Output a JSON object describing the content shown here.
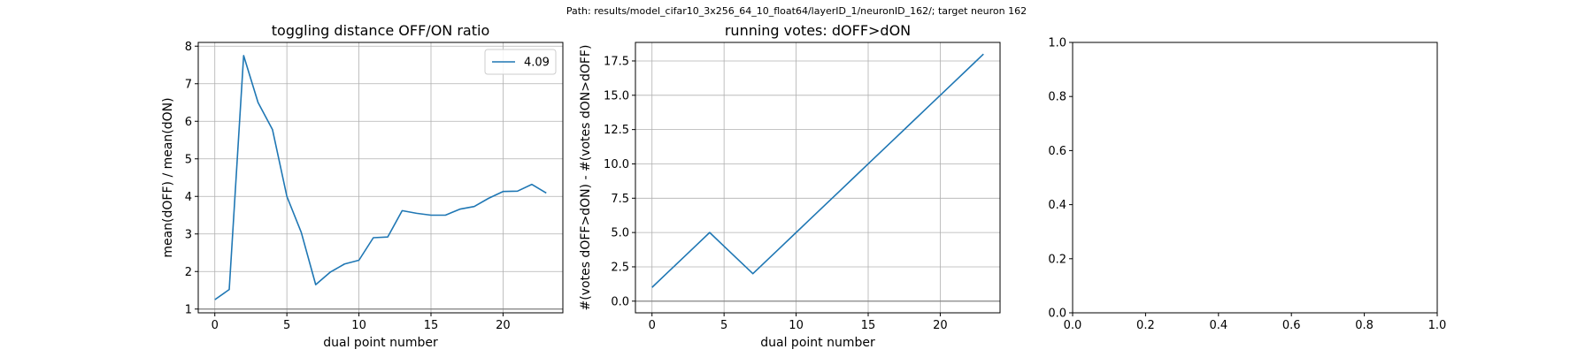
{
  "suptitle": "Path: results/model_cifar10_3x256_64_10_float64/layerID_1/neuronID_162/; target neuron 162",
  "colors": {
    "series": "#1f77b4",
    "grid": "#b0b0b0",
    "zero_line": "#808080"
  },
  "chart_data": [
    {
      "type": "line",
      "title": "toggling distance OFF/ON ratio",
      "xlabel": "dual point number",
      "ylabel": "mean(dOFF) / mean(dON)",
      "xlim": [
        -1.15,
        24.15
      ],
      "ylim": [
        0.9,
        8.1
      ],
      "xticks": [
        0,
        5,
        10,
        15,
        20
      ],
      "yticks": [
        1,
        2,
        3,
        4,
        5,
        6,
        7,
        8
      ],
      "grid": true,
      "hline": 1,
      "legend": {
        "placement": "top-right",
        "entries": [
          "4.09"
        ]
      },
      "series": [
        {
          "name": "4.09",
          "x": [
            0,
            1,
            2,
            3,
            4,
            5,
            6,
            7,
            8,
            9,
            10,
            11,
            12,
            13,
            14,
            15,
            16,
            17,
            18,
            19,
            20,
            21,
            22,
            23
          ],
          "y": [
            1.25,
            1.52,
            7.75,
            6.5,
            5.78,
            4.0,
            3.04,
            1.65,
            1.98,
            2.2,
            2.3,
            2.9,
            2.92,
            3.62,
            3.55,
            3.5,
            3.5,
            3.66,
            3.73,
            3.95,
            4.13,
            4.14,
            4.32,
            4.09
          ]
        }
      ]
    },
    {
      "type": "line",
      "title": "running votes: dOFF>dON",
      "xlabel": "dual point number",
      "ylabel": "#(votes dOFF>dON) - #(votes dON>dOFF)",
      "xlim": [
        -1.15,
        24.15
      ],
      "ylim": [
        -0.85,
        18.85
      ],
      "xticks": [
        0,
        5,
        10,
        15,
        20
      ],
      "yticks": [
        0.0,
        2.5,
        5.0,
        7.5,
        10.0,
        12.5,
        15.0,
        17.5
      ],
      "ytick_labels": [
        "0.0",
        "2.5",
        "5.0",
        "7.5",
        "10.0",
        "12.5",
        "15.0",
        "17.5"
      ],
      "grid": true,
      "hline": 0,
      "series": [
        {
          "x": [
            0,
            1,
            2,
            3,
            4,
            5,
            6,
            7,
            8,
            9,
            10,
            11,
            12,
            13,
            14,
            15,
            16,
            17,
            18,
            19,
            20,
            21,
            22,
            23
          ],
          "y": [
            1,
            2,
            3,
            4,
            5,
            4,
            3,
            2,
            3,
            4,
            5,
            6,
            7,
            8,
            9,
            10,
            11,
            12,
            13,
            14,
            15,
            16,
            17,
            18
          ]
        }
      ]
    },
    {
      "type": "line",
      "title": "",
      "xlabel": "",
      "ylabel": "",
      "xlim": [
        0,
        1
      ],
      "ylim": [
        0,
        1
      ],
      "xticks": [
        0.0,
        0.2,
        0.4,
        0.6,
        0.8,
        1.0
      ],
      "yticks": [
        0.0,
        0.2,
        0.4,
        0.6,
        0.8,
        1.0
      ],
      "xtick_labels": [
        "0.0",
        "0.2",
        "0.4",
        "0.6",
        "0.8",
        "1.0"
      ],
      "ytick_labels": [
        "0.0",
        "0.2",
        "0.4",
        "0.6",
        "0.8",
        "1.0"
      ],
      "grid": false,
      "series": []
    }
  ]
}
